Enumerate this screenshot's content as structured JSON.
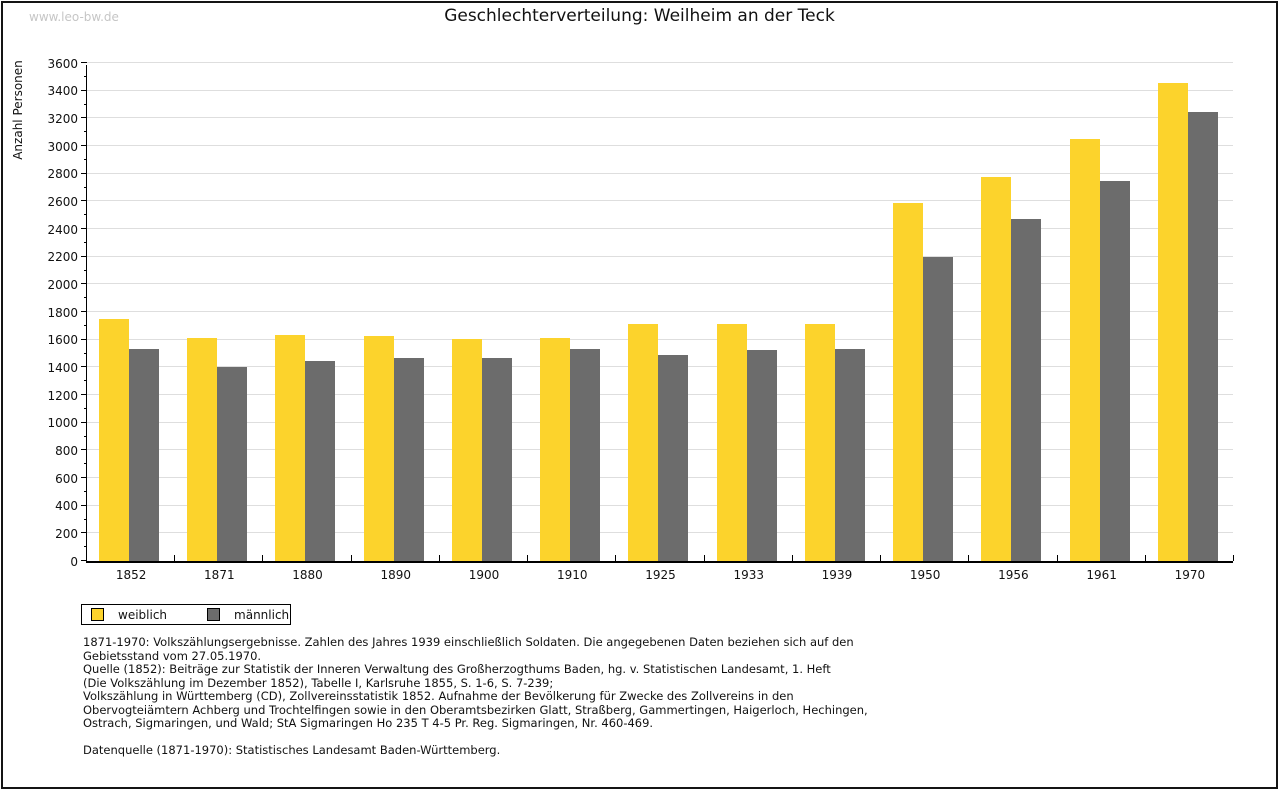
{
  "watermark": "www.leo-bw.de",
  "title": "Geschlechterverteilung: Weilheim an der Teck",
  "chart_data": {
    "type": "bar",
    "title": "Geschlechterverteilung: Weilheim an der Teck",
    "xlabel": "",
    "ylabel": "Anzahl Personen",
    "ylim": [
      0,
      3600
    ],
    "ytick_label_step": 200,
    "ytick_minor_step": 100,
    "grid": "horizontal",
    "legend_position": "bottom-left",
    "categories": [
      "1852",
      "1871",
      "1880",
      "1890",
      "1900",
      "1910",
      "1925",
      "1933",
      "1939",
      "1950",
      "1956",
      "1961",
      "1970"
    ],
    "series": [
      {
        "name": "weiblich",
        "color": "#FCD32C",
        "values": [
          1750,
          1615,
          1635,
          1630,
          1605,
          1615,
          1710,
          1715,
          1715,
          2590,
          2775,
          3050,
          3455
        ]
      },
      {
        "name": "männlich",
        "color": "#6C6C6C",
        "values": [
          1530,
          1400,
          1445,
          1465,
          1465,
          1530,
          1490,
          1525,
          1530,
          2200,
          2470,
          2745,
          3245
        ]
      }
    ]
  },
  "legend": {
    "items": [
      {
        "label": "weiblich",
        "color": "#FCD32C"
      },
      {
        "label": "männlich",
        "color": "#6C6C6C"
      }
    ]
  },
  "footnotes": {
    "lines": [
      "1871-1970: Volkszählungsergebnisse. Zahlen des Jahres 1939 einschließlich Soldaten. Die angegebenen Daten beziehen sich auf den",
      "Gebietsstand vom 27.05.1970.",
      "Quelle (1852): Beiträge zur Statistik der Inneren Verwaltung des Großherzogthums Baden, hg. v. Statistischen Landesamt, 1. Heft",
      "(Die Volkszählung im Dezember 1852), Tabelle I, Karlsruhe 1855, S. 1-6, S. 7-239;",
      "Volkszählung in Württemberg (CD), Zollvereinsstatistik 1852. Aufnahme der Bevölkerung für Zwecke des Zollvereins in den",
      "Obervogteiämtern Achberg und Trochtelfingen sowie in den Oberamtsbezirken Glatt, Straßberg, Gammertingen, Haigerloch, Hechingen,",
      "Ostrach, Sigmaringen, und Wald; StA Sigmaringen Ho 235 T 4-5 Pr. Reg. Sigmaringen, Nr. 460-469."
    ],
    "datasource": "Datenquelle (1871-1970): Statistisches Landesamt Baden-Württemberg."
  }
}
